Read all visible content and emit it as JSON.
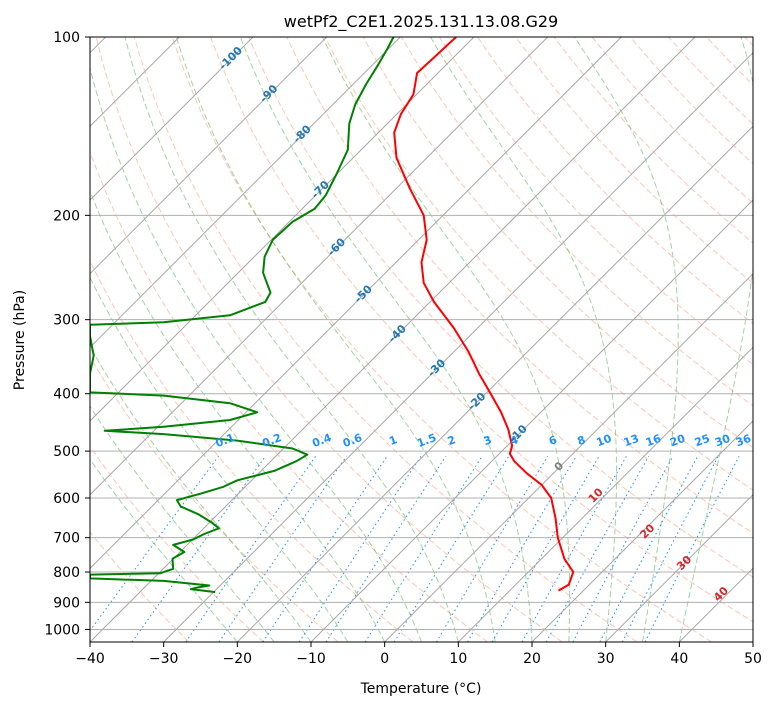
{
  "chart_data": {
    "type": "line",
    "title": "wetPf2_C2E1.2025.131.13.08.G29",
    "xlabel": "Temperature (°C)",
    "ylabel": "Pressure (hPa)",
    "xlim": [
      -40,
      50
    ],
    "ylim": [
      1050,
      100
    ],
    "y_scale": "log",
    "grid": true,
    "x_ticks": [
      -40,
      -30,
      -20,
      -10,
      0,
      10,
      20,
      30,
      40,
      50
    ],
    "y_ticks": [
      100,
      200,
      300,
      400,
      500,
      600,
      700,
      800,
      900,
      1000
    ],
    "colors": {
      "temperature": "#ff0000",
      "dewpoint": "#008000",
      "isotherm": "#808080",
      "dry_adiabat": "#ff7f50",
      "moist_adiabat": "#2ca02c",
      "mixing_ratio": "#1e90ff",
      "isotherm_label": "#1f77b4",
      "dry_adiabat_label": "#d62728",
      "zero_label": "#808080"
    },
    "series": [
      {
        "points": [
          {
            "p": 860,
            "t": 23.6
          },
          {
            "p": 840,
            "t": 25.0
          },
          {
            "p": 800,
            "t": 25.6
          },
          {
            "p": 760,
            "t": 24.4
          },
          {
            "p": 700,
            "t": 23.5
          },
          {
            "p": 650,
            "t": 23.2
          },
          {
            "p": 600,
            "t": 22.6
          },
          {
            "p": 570,
            "t": 21.3
          },
          {
            "p": 545,
            "t": 19.3
          },
          {
            "p": 520,
            "t": 17.6
          },
          {
            "p": 505,
            "t": 17.0
          },
          {
            "p": 490,
            "t": 17.3
          },
          {
            "p": 460,
            "t": 16.8
          },
          {
            "p": 430,
            "t": 15.8
          },
          {
            "p": 400,
            "t": 14.4
          },
          {
            "p": 370,
            "t": 12.8
          },
          {
            "p": 340,
            "t": 11.4
          },
          {
            "p": 310,
            "t": 9.4
          },
          {
            "p": 280,
            "t": 6.7
          },
          {
            "p": 260,
            "t": 5.3
          },
          {
            "p": 240,
            "t": 5.0
          },
          {
            "p": 220,
            "t": 5.7
          },
          {
            "p": 200,
            "t": 5.3
          },
          {
            "p": 180,
            "t": 3.4
          },
          {
            "p": 160,
            "t": 1.6
          },
          {
            "p": 145,
            "t": 1.3
          },
          {
            "p": 135,
            "t": 2.2
          },
          {
            "p": 125,
            "t": 3.9
          },
          {
            "p": 115,
            "t": 4.4
          },
          {
            "p": 108,
            "t": 6.8
          },
          {
            "p": 100,
            "t": 9.7
          }
        ]
      },
      {
        "points": [
          {
            "p": 865,
            "t": -23.0
          },
          {
            "p": 855,
            "t": -26.3
          },
          {
            "p": 850,
            "t": -25.5
          },
          {
            "p": 843,
            "t": -23.8
          },
          {
            "p": 828,
            "t": -30.0
          },
          {
            "p": 820,
            "t": -40.0
          },
          {
            "p": 808,
            "t": -40.0
          },
          {
            "p": 804,
            "t": -30.5
          },
          {
            "p": 790,
            "t": -28.7
          },
          {
            "p": 760,
            "t": -28.8
          },
          {
            "p": 740,
            "t": -27.2
          },
          {
            "p": 720,
            "t": -28.7
          },
          {
            "p": 705,
            "t": -26.0
          },
          {
            "p": 690,
            "t": -24.5
          },
          {
            "p": 675,
            "t": -22.5
          },
          {
            "p": 660,
            "t": -23.5
          },
          {
            "p": 640,
            "t": -25.2
          },
          {
            "p": 620,
            "t": -27.7
          },
          {
            "p": 605,
            "t": -28.2
          },
          {
            "p": 590,
            "t": -25.0
          },
          {
            "p": 575,
            "t": -22.0
          },
          {
            "p": 560,
            "t": -20.0
          },
          {
            "p": 540,
            "t": -15.0
          },
          {
            "p": 520,
            "t": -12.0
          },
          {
            "p": 507,
            "t": -10.5
          },
          {
            "p": 495,
            "t": -12.5
          },
          {
            "p": 480,
            "t": -20.0
          },
          {
            "p": 468,
            "t": -30.0
          },
          {
            "p": 462,
            "t": -38.0
          },
          {
            "p": 455,
            "t": -30.0
          },
          {
            "p": 443,
            "t": -21.0
          },
          {
            "p": 430,
            "t": -17.3
          },
          {
            "p": 415,
            "t": -21.0
          },
          {
            "p": 403,
            "t": -30.0
          },
          {
            "p": 398,
            "t": -40.0
          },
          {
            "p": 370,
            "t": -40.0
          },
          {
            "p": 345,
            "t": -39.5
          },
          {
            "p": 320,
            "t": -40.0
          },
          {
            "p": 306,
            "t": -40.0
          },
          {
            "p": 303,
            "t": -30.0
          },
          {
            "p": 295,
            "t": -21.0
          },
          {
            "p": 280,
            "t": -16.2
          },
          {
            "p": 270,
            "t": -15.5
          },
          {
            "p": 250,
            "t": -16.5
          },
          {
            "p": 235,
            "t": -16.3
          },
          {
            "p": 220,
            "t": -15.2
          },
          {
            "p": 205,
            "t": -12.5
          },
          {
            "p": 195,
            "t": -9.5
          },
          {
            "p": 185,
            "t": -8.0
          },
          {
            "p": 170,
            "t": -6.5
          },
          {
            "p": 155,
            "t": -5.0
          },
          {
            "p": 140,
            "t": -4.8
          },
          {
            "p": 130,
            "t": -4.0
          },
          {
            "p": 120,
            "t": -2.5
          },
          {
            "p": 112,
            "t": -1.0
          },
          {
            "p": 105,
            "t": 0.3
          },
          {
            "p": 100,
            "t": 1.2
          }
        ]
      }
    ],
    "isotherm_labels": [
      "-100",
      "-90",
      "-80",
      "-70",
      "-60",
      "-50",
      "-40",
      "-30",
      "-20",
      "-10",
      "0"
    ],
    "dry_adiabat_labels": [
      "10",
      "20",
      "30",
      "40"
    ],
    "mixing_ratio_labels": [
      "0.1",
      "0.2",
      "0.4",
      "0.6",
      "1",
      "1.5",
      "2",
      "3",
      "4",
      "6",
      "8",
      "10",
      "13",
      "16",
      "20",
      "25",
      "30",
      "36"
    ]
  }
}
